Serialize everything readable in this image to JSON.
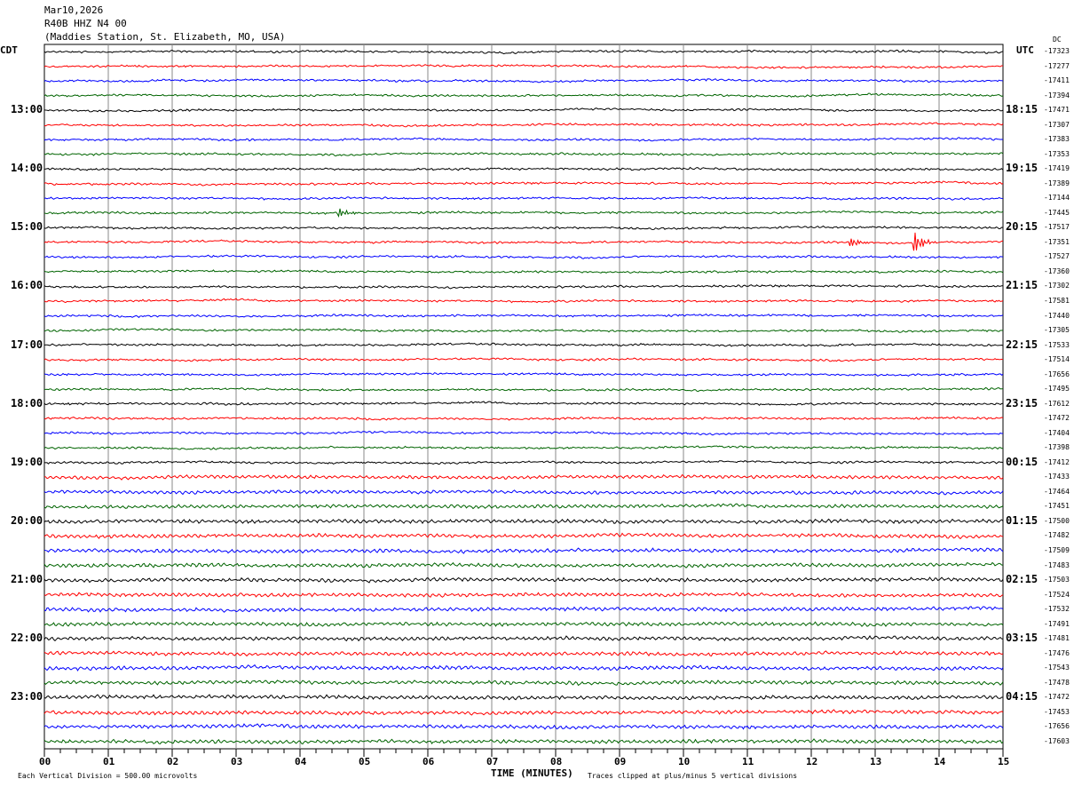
{
  "header": {
    "date": "Mar10,2026",
    "channel": "R40B HHZ N4 00",
    "station": "(Maddies Station, St. Elizabeth, MO, USA)"
  },
  "left_tz": "CDT",
  "right_tz": "UTC",
  "dc_label": "DC",
  "chart_data": {
    "type": "line",
    "title": "R40B HHZ N4 00 helicorder",
    "xlabel": "TIME (MINUTES)",
    "x_ticks": [
      "00",
      "01",
      "02",
      "03",
      "04",
      "05",
      "06",
      "07",
      "08",
      "09",
      "10",
      "11",
      "12",
      "13",
      "14",
      "15"
    ],
    "xlim": [
      0,
      15
    ],
    "trace_minutes": 15,
    "colors": [
      "#000000",
      "#ff0000",
      "#0000ff",
      "#006400"
    ],
    "left_hour_labels": [
      "13:00",
      "14:00",
      "15:00",
      "16:00",
      "17:00",
      "18:00",
      "19:00",
      "20:00",
      "21:00",
      "22:00",
      "23:00"
    ],
    "right_hour_labels": [
      "18:15",
      "19:15",
      "20:15",
      "21:15",
      "22:15",
      "23:15",
      "00:15",
      "01:15",
      "02:15",
      "03:15",
      "04:15"
    ],
    "dc_offsets": [
      "-17323",
      "-17277",
      "-17411",
      "-17394",
      "-17471",
      "-17307",
      "-17383",
      "-17353",
      "-17419",
      "-17389",
      "-17144",
      "-17445",
      "-17517",
      "-17351",
      "-17527",
      "-17360",
      "-17302",
      "-17581",
      "-17440",
      "-17305",
      "-17533",
      "-17514",
      "-17656",
      "-17495",
      "-17612",
      "-17472",
      "-17404",
      "-17398",
      "-17412",
      "-17433",
      "-17464",
      "-17451",
      "-17500",
      "-17482",
      "-17509",
      "-17483",
      "-17503",
      "-17524",
      "-17532",
      "-17491",
      "-17481",
      "-17476",
      "-17543",
      "-17478",
      "-17472",
      "-17453",
      "-17656",
      "-17603"
    ],
    "events": [
      {
        "trace": 13,
        "minute": 13.6,
        "amplitude": "large"
      },
      {
        "trace": 13,
        "minute": 12.6,
        "amplitude": "medium"
      },
      {
        "trace": 11,
        "minute": 4.6,
        "amplitude": "medium"
      }
    ]
  },
  "footer": {
    "scale": "Each Vertical Division =  500.00 microvolts",
    "clip": "Traces clipped at plus/minus 5 vertical divisions"
  }
}
